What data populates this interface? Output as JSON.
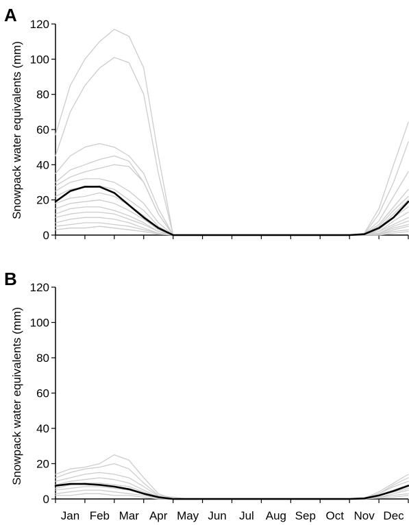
{
  "chart_data": [
    {
      "type": "line",
      "panel": "A",
      "ylabel": "Snowpack water equivalents (mm)",
      "xlabel": "",
      "ylim": [
        0,
        120
      ],
      "yticks": [
        0,
        20,
        40,
        60,
        80,
        100,
        120
      ],
      "xticks": [
        "Jan",
        "Feb",
        "Mar",
        "Apr",
        "May",
        "Jun",
        "Jul",
        "Aug",
        "Sep",
        "Oct",
        "Nov",
        "Dec"
      ],
      "x": [
        0,
        0.5,
        1,
        1.5,
        2,
        2.5,
        3,
        3.5,
        4,
        4.5,
        5,
        5.5,
        6,
        6.5,
        7,
        7.5,
        8,
        8.5,
        9,
        9.5,
        10,
        10.5,
        11,
        11.5,
        12
      ],
      "grid": false,
      "series": [
        {
          "role": "mean",
          "color": "#000000",
          "values": [
            19,
            25,
            27.5,
            27.5,
            24,
            17,
            10,
            4,
            0,
            0,
            0,
            0,
            0,
            0,
            0,
            0,
            0,
            0,
            0,
            0,
            0,
            0.5,
            4,
            10,
            19
          ]
        },
        {
          "role": "year",
          "color": "#cccccc",
          "values": [
            57,
            85,
            100,
            110,
            117,
            113,
            95,
            45,
            0,
            0,
            0,
            0,
            0,
            0,
            0,
            0,
            0,
            0,
            0,
            0,
            0,
            1,
            15,
            40,
            64
          ]
        },
        {
          "role": "year",
          "color": "#cccccc",
          "values": [
            45,
            70,
            85,
            95,
            101,
            98,
            80,
            35,
            0,
            0,
            0,
            0,
            0,
            0,
            0,
            0,
            0,
            0,
            0,
            0,
            0,
            0.5,
            12,
            30,
            53
          ]
        },
        {
          "role": "year",
          "color": "#cccccc",
          "values": [
            35,
            45,
            50,
            52,
            50,
            45,
            35,
            15,
            0,
            0,
            0,
            0,
            0,
            0,
            0,
            0,
            0,
            0,
            0,
            0,
            0,
            0.5,
            8,
            22,
            36
          ]
        },
        {
          "role": "year",
          "color": "#cccccc",
          "values": [
            30,
            37,
            40,
            43,
            45,
            42,
            30,
            12,
            0,
            0,
            0,
            0,
            0,
            0,
            0,
            0,
            0,
            0,
            0,
            0,
            0,
            0.5,
            6,
            16,
            26
          ]
        },
        {
          "role": "year",
          "color": "#cccccc",
          "values": [
            28,
            33,
            36,
            38,
            40,
            39,
            30,
            12,
            0,
            0,
            0,
            0,
            0,
            0,
            0,
            0,
            0,
            0,
            0,
            0,
            0,
            0.5,
            5,
            14,
            22
          ]
        },
        {
          "role": "year",
          "color": "#cccccc",
          "values": [
            25,
            30,
            32,
            32,
            30,
            25,
            18,
            7,
            0,
            0,
            0,
            0,
            0,
            0,
            0,
            0,
            0,
            0,
            0,
            0,
            0,
            0,
            4,
            12,
            20
          ]
        },
        {
          "role": "year",
          "color": "#cccccc",
          "values": [
            22,
            26,
            27,
            28,
            26,
            20,
            14,
            5,
            0,
            0,
            0,
            0,
            0,
            0,
            0,
            0,
            0,
            0,
            0,
            0,
            0,
            0,
            3,
            10,
            16
          ]
        },
        {
          "role": "year",
          "color": "#cccccc",
          "values": [
            18,
            21,
            22,
            24,
            22,
            17,
            11,
            4,
            0,
            0,
            0,
            0,
            0,
            0,
            0,
            0,
            0,
            0,
            0,
            0,
            0,
            0,
            2,
            8,
            13
          ]
        },
        {
          "role": "year",
          "color": "#cccccc",
          "values": [
            15,
            18,
            19,
            20,
            18,
            14,
            9,
            3,
            0,
            0,
            0,
            0,
            0,
            0,
            0,
            0,
            0,
            0,
            0,
            0,
            0,
            0,
            2,
            6,
            10
          ]
        },
        {
          "role": "year",
          "color": "#cccccc",
          "values": [
            12,
            15,
            16,
            16,
            14,
            11,
            7,
            2,
            0,
            0,
            0,
            0,
            0,
            0,
            0,
            0,
            0,
            0,
            0,
            0,
            0,
            0,
            1,
            5,
            8
          ]
        },
        {
          "role": "year",
          "color": "#cccccc",
          "values": [
            10,
            12,
            13,
            13,
            12,
            9,
            6,
            2,
            0,
            0,
            0,
            0,
            0,
            0,
            0,
            0,
            0,
            0,
            0,
            0,
            0,
            0,
            1,
            4,
            6
          ]
        },
        {
          "role": "year",
          "color": "#cccccc",
          "values": [
            7,
            9,
            10,
            10,
            9,
            7,
            4,
            1,
            0,
            0,
            0,
            0,
            0,
            0,
            0,
            0,
            0,
            0,
            0,
            0,
            0,
            0,
            0.5,
            3,
            5
          ]
        },
        {
          "role": "year",
          "color": "#cccccc",
          "values": [
            5,
            6,
            7,
            7,
            6,
            5,
            3,
            1,
            0,
            0,
            0,
            0,
            0,
            0,
            0,
            0,
            0,
            0,
            0,
            0,
            0,
            0,
            0.5,
            2,
            3
          ]
        },
        {
          "role": "year",
          "color": "#cccccc",
          "values": [
            3,
            4,
            4,
            5,
            4,
            3,
            2,
            0.5,
            0,
            0,
            0,
            0,
            0,
            0,
            0,
            0,
            0,
            0,
            0,
            0,
            0,
            0,
            0,
            1,
            2
          ]
        }
      ]
    },
    {
      "type": "line",
      "panel": "B",
      "ylabel": "Snowpack water equivalents (mm)",
      "xlabel": "",
      "ylim": [
        0,
        120
      ],
      "yticks": [
        0,
        20,
        40,
        60,
        80,
        100,
        120
      ],
      "xticks": [
        "Jan",
        "Feb",
        "Mar",
        "Apr",
        "May",
        "Jun",
        "Jul",
        "Aug",
        "Sep",
        "Oct",
        "Nov",
        "Dec"
      ],
      "x": [
        0,
        0.5,
        1,
        1.5,
        2,
        2.5,
        3,
        3.5,
        4,
        4.5,
        5,
        5.5,
        6,
        6.5,
        7,
        7.5,
        8,
        8.5,
        9,
        9.5,
        10,
        10.5,
        11,
        11.5,
        12
      ],
      "grid": false,
      "series": [
        {
          "role": "mean",
          "color": "#000000",
          "values": [
            7.5,
            8.5,
            8.5,
            8,
            7,
            5.5,
            3,
            1,
            0,
            0,
            0,
            0,
            0,
            0,
            0,
            0,
            0,
            0,
            0,
            0,
            0,
            0.3,
            2,
            4.5,
            7.5
          ]
        },
        {
          "role": "year",
          "color": "#cccccc",
          "values": [
            14,
            17,
            18,
            20,
            25,
            22,
            12,
            3,
            0,
            0,
            0,
            0,
            0,
            0,
            0,
            0,
            0,
            0,
            0,
            0,
            0,
            0.5,
            4,
            9,
            14
          ]
        },
        {
          "role": "year",
          "color": "#cccccc",
          "values": [
            12,
            15,
            17,
            18,
            20,
            17,
            9,
            2,
            1,
            0,
            0,
            0,
            0,
            0,
            0,
            0,
            0,
            0,
            0,
            0,
            0,
            0.3,
            3,
            8,
            12
          ]
        },
        {
          "role": "year",
          "color": "#cccccc",
          "values": [
            10,
            12,
            14,
            15,
            14,
            12,
            7,
            1.5,
            0,
            0,
            0,
            0,
            0,
            0,
            0,
            0,
            0,
            0,
            0,
            0,
            0,
            0.3,
            3,
            7,
            10
          ]
        },
        {
          "role": "year",
          "color": "#cccccc",
          "values": [
            8,
            10,
            11,
            12,
            11,
            9,
            5,
            1,
            0,
            0,
            0,
            0,
            0,
            0,
            0,
            0,
            0,
            0,
            0,
            0,
            0,
            0.2,
            2,
            5,
            8
          ]
        },
        {
          "role": "year",
          "color": "#cccccc",
          "values": [
            6,
            8,
            9,
            9,
            8,
            7,
            4,
            1,
            0,
            0,
            0,
            0,
            0,
            0,
            0,
            0,
            0,
            0,
            0,
            0,
            0,
            0.2,
            2,
            4,
            6
          ]
        },
        {
          "role": "year",
          "color": "#cccccc",
          "values": [
            5,
            6,
            7,
            7,
            6,
            5,
            3,
            0.5,
            0,
            0,
            0,
            0,
            0,
            0,
            0,
            0,
            0,
            0,
            0,
            0,
            0,
            0,
            1,
            3,
            5
          ]
        },
        {
          "role": "year",
          "color": "#cccccc",
          "values": [
            3,
            4,
            5,
            5,
            4,
            3,
            2,
            0.5,
            0,
            0,
            0,
            0,
            0,
            0,
            0,
            0,
            0,
            0,
            0,
            0,
            0,
            0,
            1,
            2,
            3
          ]
        },
        {
          "role": "year",
          "color": "#cccccc",
          "values": [
            2,
            2,
            3,
            3,
            2,
            2,
            1,
            0,
            0,
            0,
            0,
            0,
            0,
            0,
            0,
            0,
            0,
            0,
            0,
            0,
            0,
            0,
            0.5,
            1,
            2
          ]
        }
      ]
    }
  ]
}
